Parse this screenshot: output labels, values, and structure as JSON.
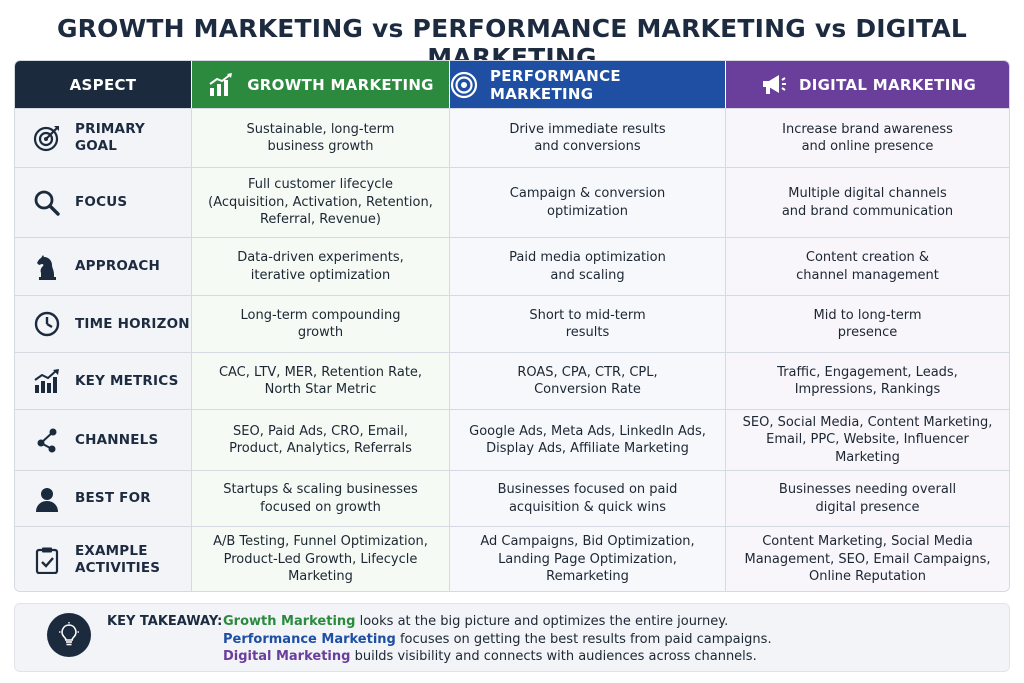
{
  "title": "GROWTH MARKETING vs PERFORMANCE MARKETING vs DIGITAL MARKETING",
  "colors": {
    "growth": "#2c8a3e",
    "performance": "#1e4fa3",
    "digital": "#6a3f9c",
    "navy": "#1c2a3d"
  },
  "headers": {
    "aspect": "ASPECT",
    "growth": "GROWTH MARKETING",
    "performance": "PERFORMANCE MARKETING",
    "digital": "DIGITAL MARKETING"
  },
  "header_icons": {
    "growth": "bar-chart-icon",
    "performance": "target-icon",
    "digital": "megaphone-icon"
  },
  "rows": [
    {
      "aspect": "PRIMARY GOAL",
      "icon": "target-arrow-icon",
      "growth": "Sustainable, long-term\nbusiness growth",
      "performance": "Drive immediate results\nand conversions",
      "digital": "Increase brand awareness\nand online presence"
    },
    {
      "aspect": "FOCUS",
      "icon": "magnifier-icon",
      "growth": "Full customer lifecycle\n(Acquisition, Activation, Retention,\nReferral, Revenue)",
      "performance": "Campaign & conversion\noptimization",
      "digital": "Multiple digital channels\nand brand communication"
    },
    {
      "aspect": "APPROACH",
      "icon": "chess-knight-icon",
      "growth": "Data-driven experiments,\niterative optimization",
      "performance": "Paid media optimization\nand scaling",
      "digital": "Content creation &\nchannel management"
    },
    {
      "aspect": "TIME HORIZON",
      "icon": "clock-icon",
      "growth": "Long-term compounding\ngrowth",
      "performance": "Short to mid-term\nresults",
      "digital": "Mid to long-term\npresence"
    },
    {
      "aspect": "KEY METRICS",
      "icon": "metrics-chart-icon",
      "growth": "CAC, LTV, MER, Retention Rate,\nNorth Star Metric",
      "performance": "ROAS, CPA, CTR, CPL,\nConversion Rate",
      "digital": "Traffic, Engagement, Leads,\nImpressions, Rankings"
    },
    {
      "aspect": "CHANNELS",
      "icon": "network-icon",
      "growth": "SEO, Paid Ads, CRO, Email,\nProduct, Analytics, Referrals",
      "performance": "Google Ads, Meta Ads, LinkedIn Ads,\nDisplay Ads, Affiliate Marketing",
      "digital": "SEO, Social Media, Content Marketing,\nEmail, PPC, Website, Influencer\nMarketing"
    },
    {
      "aspect": "BEST FOR",
      "icon": "user-icon",
      "growth": "Startups & scaling businesses\nfocused on growth",
      "performance": "Businesses focused on paid\nacquisition & quick wins",
      "digital": "Businesses needing overall\ndigital presence"
    },
    {
      "aspect": "EXAMPLE\nACTIVITIES",
      "icon": "clipboard-check-icon",
      "growth": "A/B Testing, Funnel Optimization,\nProduct-Led Growth, Lifecycle\nMarketing",
      "performance": "Ad Campaigns, Bid Optimization,\nLanding Page Optimization,\nRemarketing",
      "digital": "Content Marketing, Social Media\nManagement, SEO, Email Campaigns,\nOnline Reputation"
    }
  ],
  "takeaway": {
    "icon": "lightbulb-icon",
    "label": "KEY TAKEAWAY:",
    "lines": [
      {
        "term": "Growth Marketing",
        "text": " looks at the big picture and optimizes the entire journey."
      },
      {
        "term": "Performance Marketing",
        "text": " focuses on getting the best results from paid campaigns."
      },
      {
        "term": "Digital Marketing",
        "text": " builds visibility and connects with audiences across channels."
      }
    ]
  }
}
